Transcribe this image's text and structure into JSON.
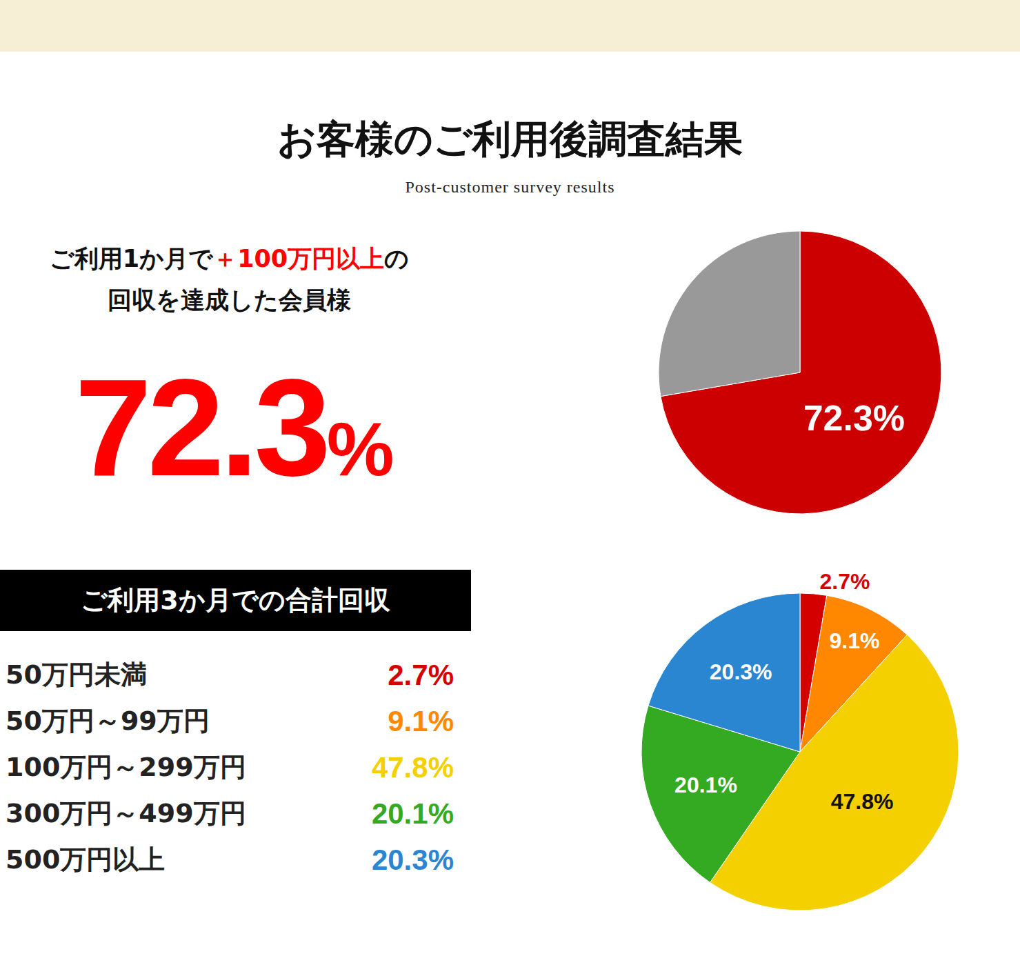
{
  "header": {
    "title": "お客様のご利用後調査結果",
    "subtitle": "Post-customer survey results"
  },
  "headline": {
    "lines": [
      [
        "ご利用1か月で",
        "＋100万円以上",
        "の"
      ],
      [
        "回収を達成した会員様"
      ]
    ],
    "highlight": "＋100万円以上"
  },
  "chart_data": [
    {
      "type": "pie",
      "values": [
        72.3,
        27.7
      ],
      "value_labels": [
        "72.3%",
        null
      ],
      "colors": [
        "#cc0000",
        "#999999"
      ],
      "data_labels": true
    },
    {
      "type": "pie",
      "title": "ご利用3か月での合計回収",
      "categories": [
        "50万円未満",
        "50万円～99万円",
        "100万円～299万円",
        "300万円～499万円",
        "500万円以上"
      ],
      "values": [
        2.7,
        9.1,
        47.8,
        20.1,
        20.3
      ],
      "value_labels": [
        "2.7%",
        "9.1%",
        "47.8%",
        "20.1%",
        "20.3%"
      ],
      "colors": [
        "#d40000",
        "#ff8800",
        "#f5d000",
        "#33aa22",
        "#2a86d0"
      ],
      "data_labels": true
    }
  ]
}
